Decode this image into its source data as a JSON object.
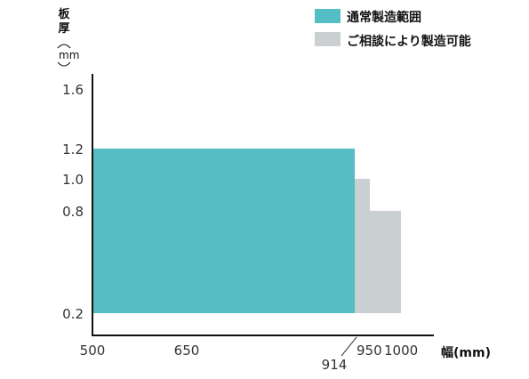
{
  "chart_data": {
    "type": "area",
    "ylabel": "板厚",
    "yunit": "mm",
    "xlabel": "幅(mm)",
    "x_ticks": [
      "500",
      "650",
      "950",
      "1000"
    ],
    "x_annotation": "914",
    "y_ticks": [
      "0.2",
      "0.8",
      "1.0",
      "1.2",
      "1.6"
    ],
    "series": [
      {
        "name": "通常製造範囲",
        "color": "#55bec4",
        "regions": [
          {
            "x": [
              500,
              914
            ],
            "y": [
              0.2,
              1.2
            ]
          }
        ]
      },
      {
        "name": "ご相談により製造可能",
        "color": "#cacfd1",
        "regions": [
          {
            "x": [
              914,
              960
            ],
            "y": [
              0.2,
              1.0
            ]
          },
          {
            "x": [
              960,
              1010
            ],
            "y": [
              0.2,
              0.8
            ]
          }
        ]
      }
    ]
  }
}
